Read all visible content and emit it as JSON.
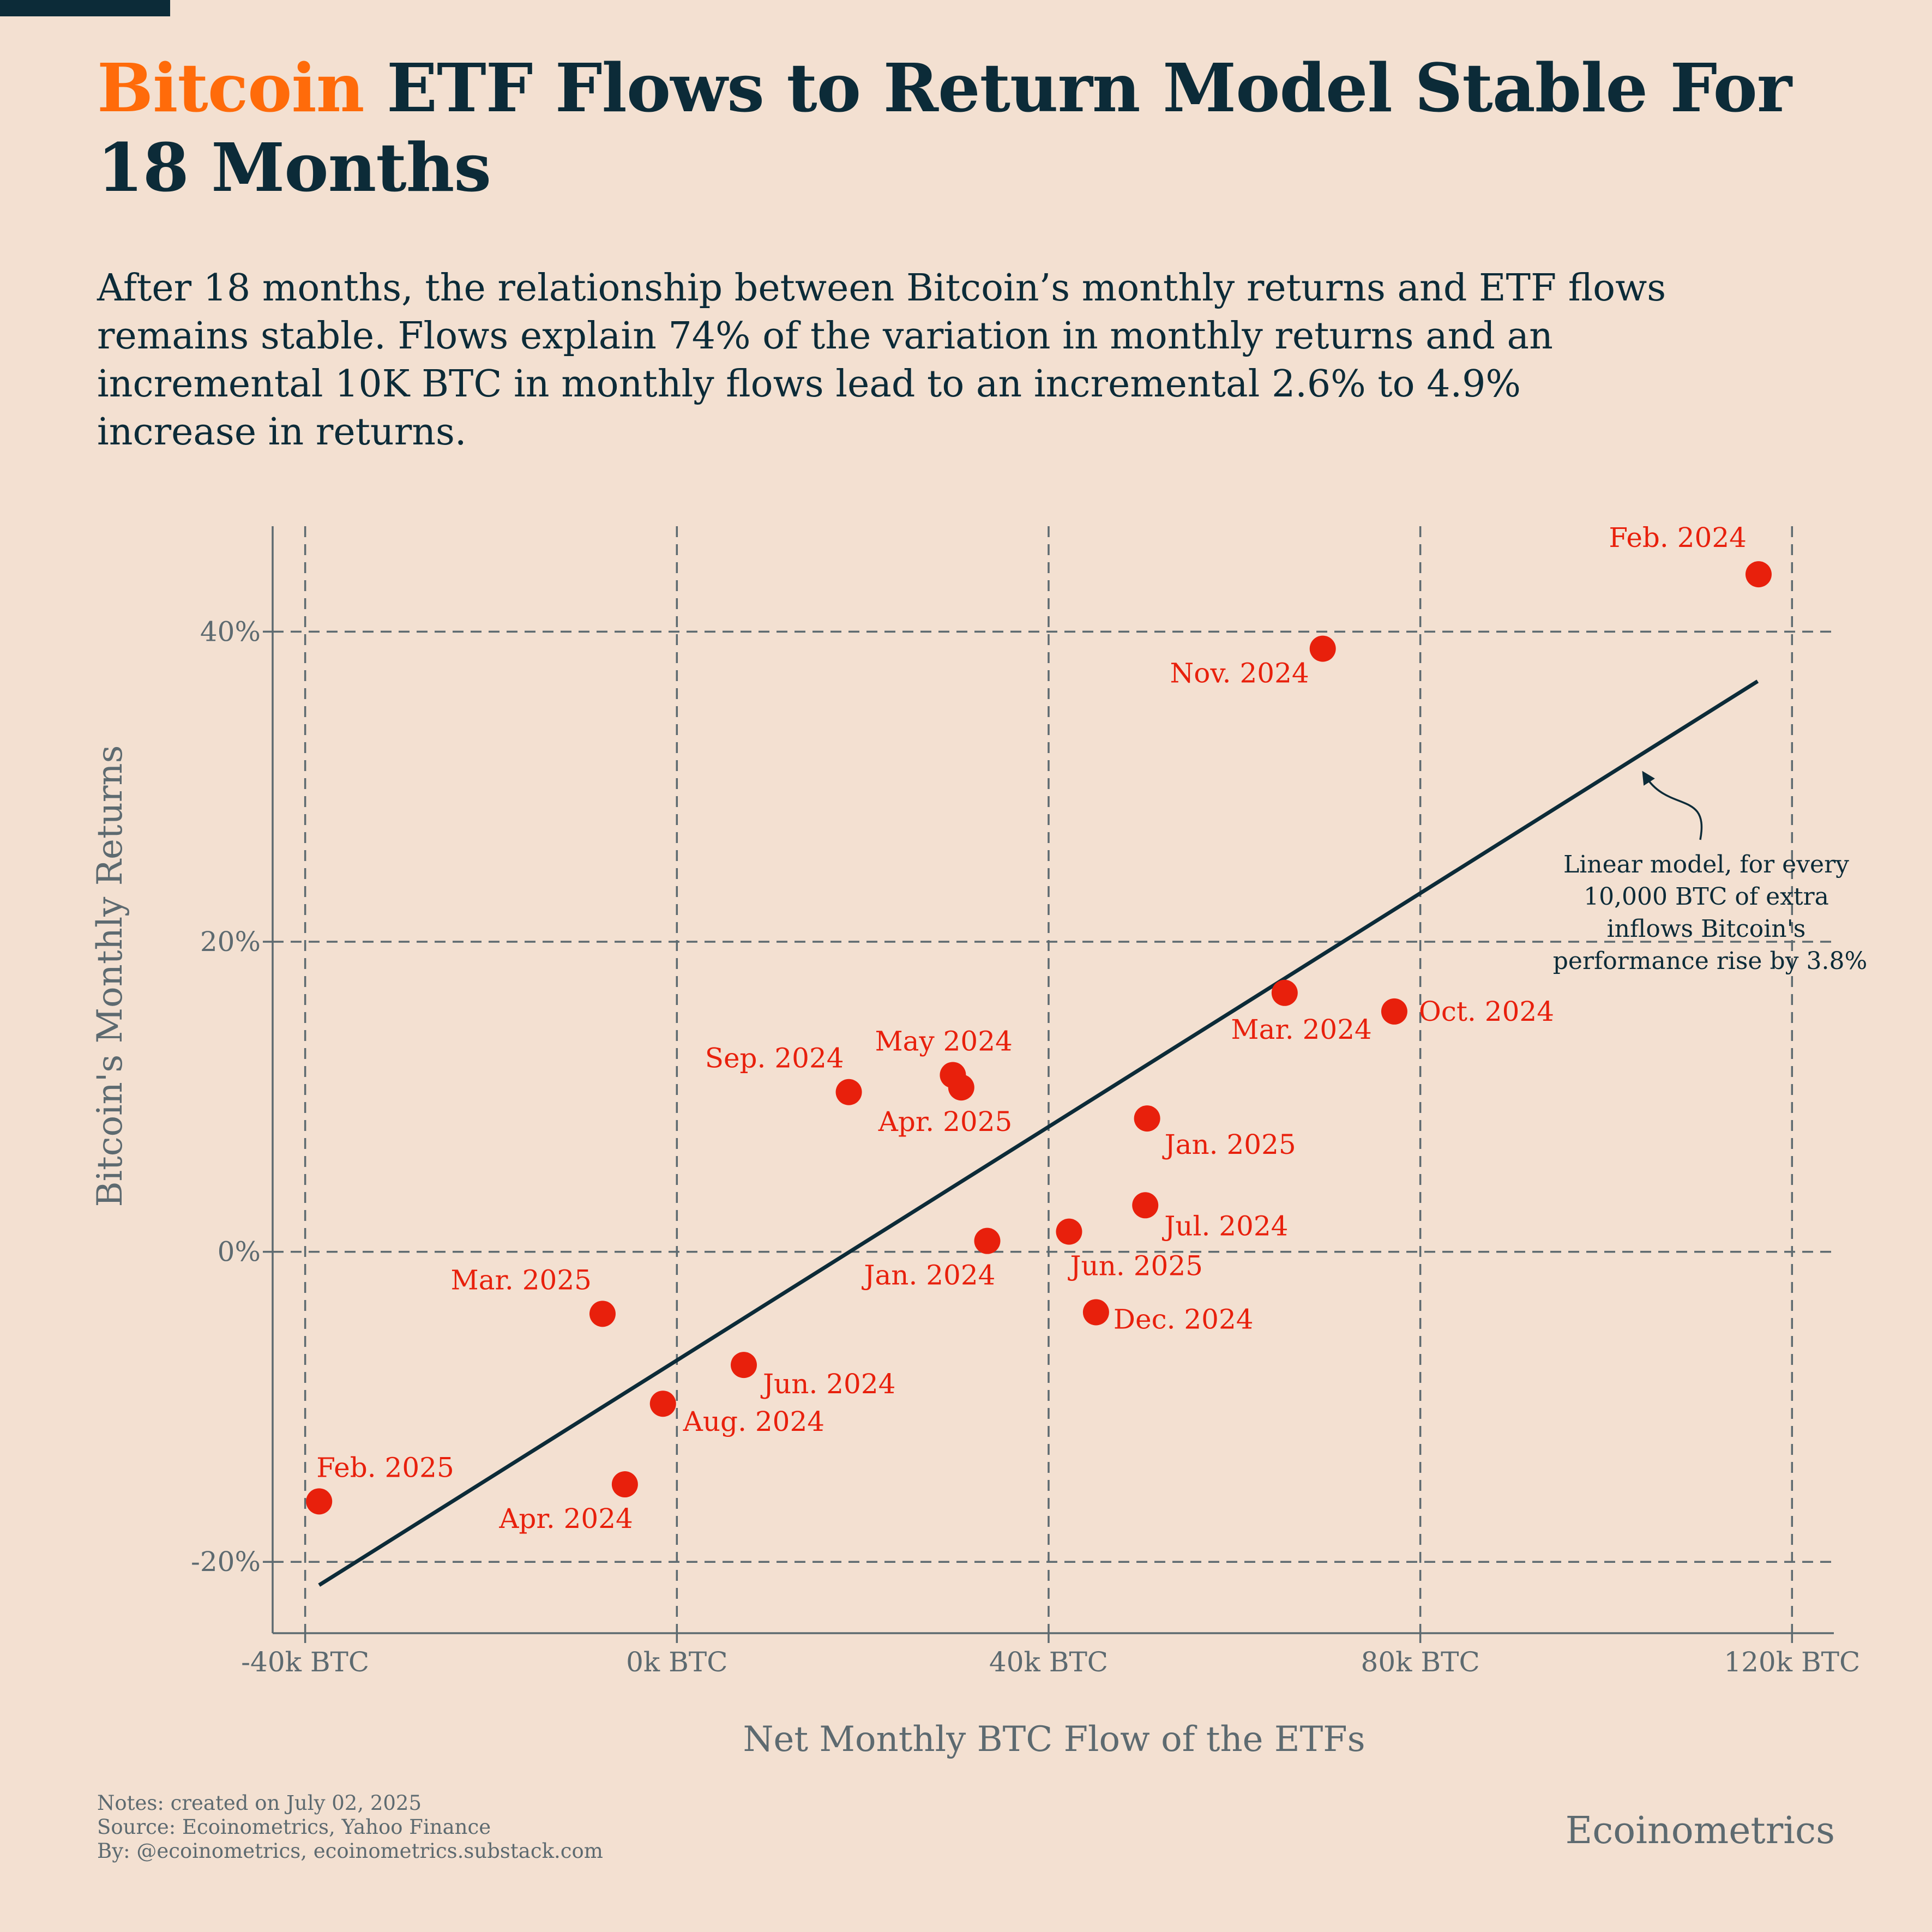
{
  "header": {
    "title_highlight": "Bitcoin",
    "title_rest": " ETF Flows to Return Model Stable For 18 Months",
    "subtitle": "After 18 months, the relationship between Bitcoin’s monthly returns and ETF flows remains stable. Flows explain 74% of the variation in monthly returns and an incremental 10K BTC in monthly flows lead to an incremental 2.6% to 4.9% increase in returns."
  },
  "colors": {
    "accent": "#ff6b0a",
    "text": "#0c2b38",
    "points": "#e8200c",
    "axis": "#5d6a70",
    "background": "#f3e0d1"
  },
  "chart_data": {
    "type": "scatter",
    "title": "",
    "xlabel": "Net Monthly BTC Flow of the ETFs",
    "ylabel": "Bitcoin's Monthly Returns",
    "x_unit": "k BTC",
    "xlim": [
      -43.5,
      124.5
    ],
    "ylim": [
      -24.6,
      46.8
    ],
    "x_ticks": [
      -40,
      0,
      40,
      80,
      120
    ],
    "x_tick_labels": [
      "-40k BTC",
      "0k BTC",
      "40k BTC",
      "80k BTC",
      "120k BTC"
    ],
    "y_ticks": [
      -20,
      0,
      20,
      40
    ],
    "y_tick_labels": [
      "-20%",
      "0%",
      "20%",
      "40%"
    ],
    "grid": true,
    "series": [
      {
        "points": [
          {
            "label": "Feb. 2024",
            "x": 116.4,
            "y": 43.7,
            "anchor": "end",
            "dx": -22,
            "dy": -50
          },
          {
            "label": "Nov. 2024",
            "x": 69.5,
            "y": 38.9,
            "anchor": "end",
            "dx": -25,
            "dy": 62
          },
          {
            "label": "Oct. 2024",
            "x": 77.2,
            "y": 15.5,
            "anchor": "start",
            "dx": 45,
            "dy": 17
          },
          {
            "label": "Mar. 2024",
            "x": 65.4,
            "y": 16.7,
            "anchor": "end",
            "dx": 160,
            "dy": 84
          },
          {
            "label": "May 2024",
            "x": 29.7,
            "y": 11.4,
            "anchor": "start",
            "dx": -143,
            "dy": -45
          },
          {
            "label": "Apr. 2025",
            "x": 30.6,
            "y": 10.6,
            "anchor": "start",
            "dx": -152,
            "dy": 80
          },
          {
            "label": "Sep. 2024",
            "x": 18.5,
            "y": 10.3,
            "anchor": "end",
            "dx": -9,
            "dy": -45
          },
          {
            "label": "Jan. 2025",
            "x": 50.6,
            "y": 8.6,
            "anchor": "start",
            "dx": 32,
            "dy": 65
          },
          {
            "label": "Jul. 2024",
            "x": 50.4,
            "y": 3.0,
            "anchor": "start",
            "dx": 35,
            "dy": 55
          },
          {
            "label": "Jun. 2025",
            "x": 42.2,
            "y": 1.3,
            "anchor": "start",
            "dx": 2,
            "dy": 80
          },
          {
            "label": "Jan. 2024",
            "x": 33.4,
            "y": 0.7,
            "anchor": "end",
            "dx": 15,
            "dy": 80
          },
          {
            "label": "Dec. 2024",
            "x": 45.1,
            "y": -3.9,
            "anchor": "start",
            "dx": 32,
            "dy": 30
          },
          {
            "label": "Mar. 2025",
            "x": -8.0,
            "y": -4.0,
            "anchor": "end",
            "dx": -20,
            "dy": -45
          },
          {
            "label": "Jun. 2024",
            "x": 7.2,
            "y": -7.3,
            "anchor": "start",
            "dx": 35,
            "dy": 52
          },
          {
            "label": "Aug. 2024",
            "x": -1.5,
            "y": -9.8,
            "anchor": "start",
            "dx": 37,
            "dy": 50
          },
          {
            "label": "Feb. 2025",
            "x": -38.5,
            "y": -16.1,
            "anchor": "start",
            "dx": -5,
            "dy": -45
          },
          {
            "label": "Apr. 2024",
            "x": -5.6,
            "y": -15.0,
            "anchor": "end",
            "dx": 15,
            "dy": 80
          }
        ]
      }
    ],
    "trend_line": {
      "x": [
        -38.5,
        116.3
      ],
      "y": [
        -21.5,
        36.8
      ]
    },
    "annotation": {
      "lines": [
        "Linear model, for every",
        "10,000 BTC of extra",
        "inflows Bitcoin's",
        "performance rise by 3.8%"
      ]
    }
  },
  "footer": {
    "notes": "Notes: created on July 02, 2025",
    "source": "Source: Ecoinometrics, Yahoo Finance",
    "by": "By: @ecoinometrics, ecoinometrics.substack.com",
    "brand": "Ecoinometrics"
  }
}
